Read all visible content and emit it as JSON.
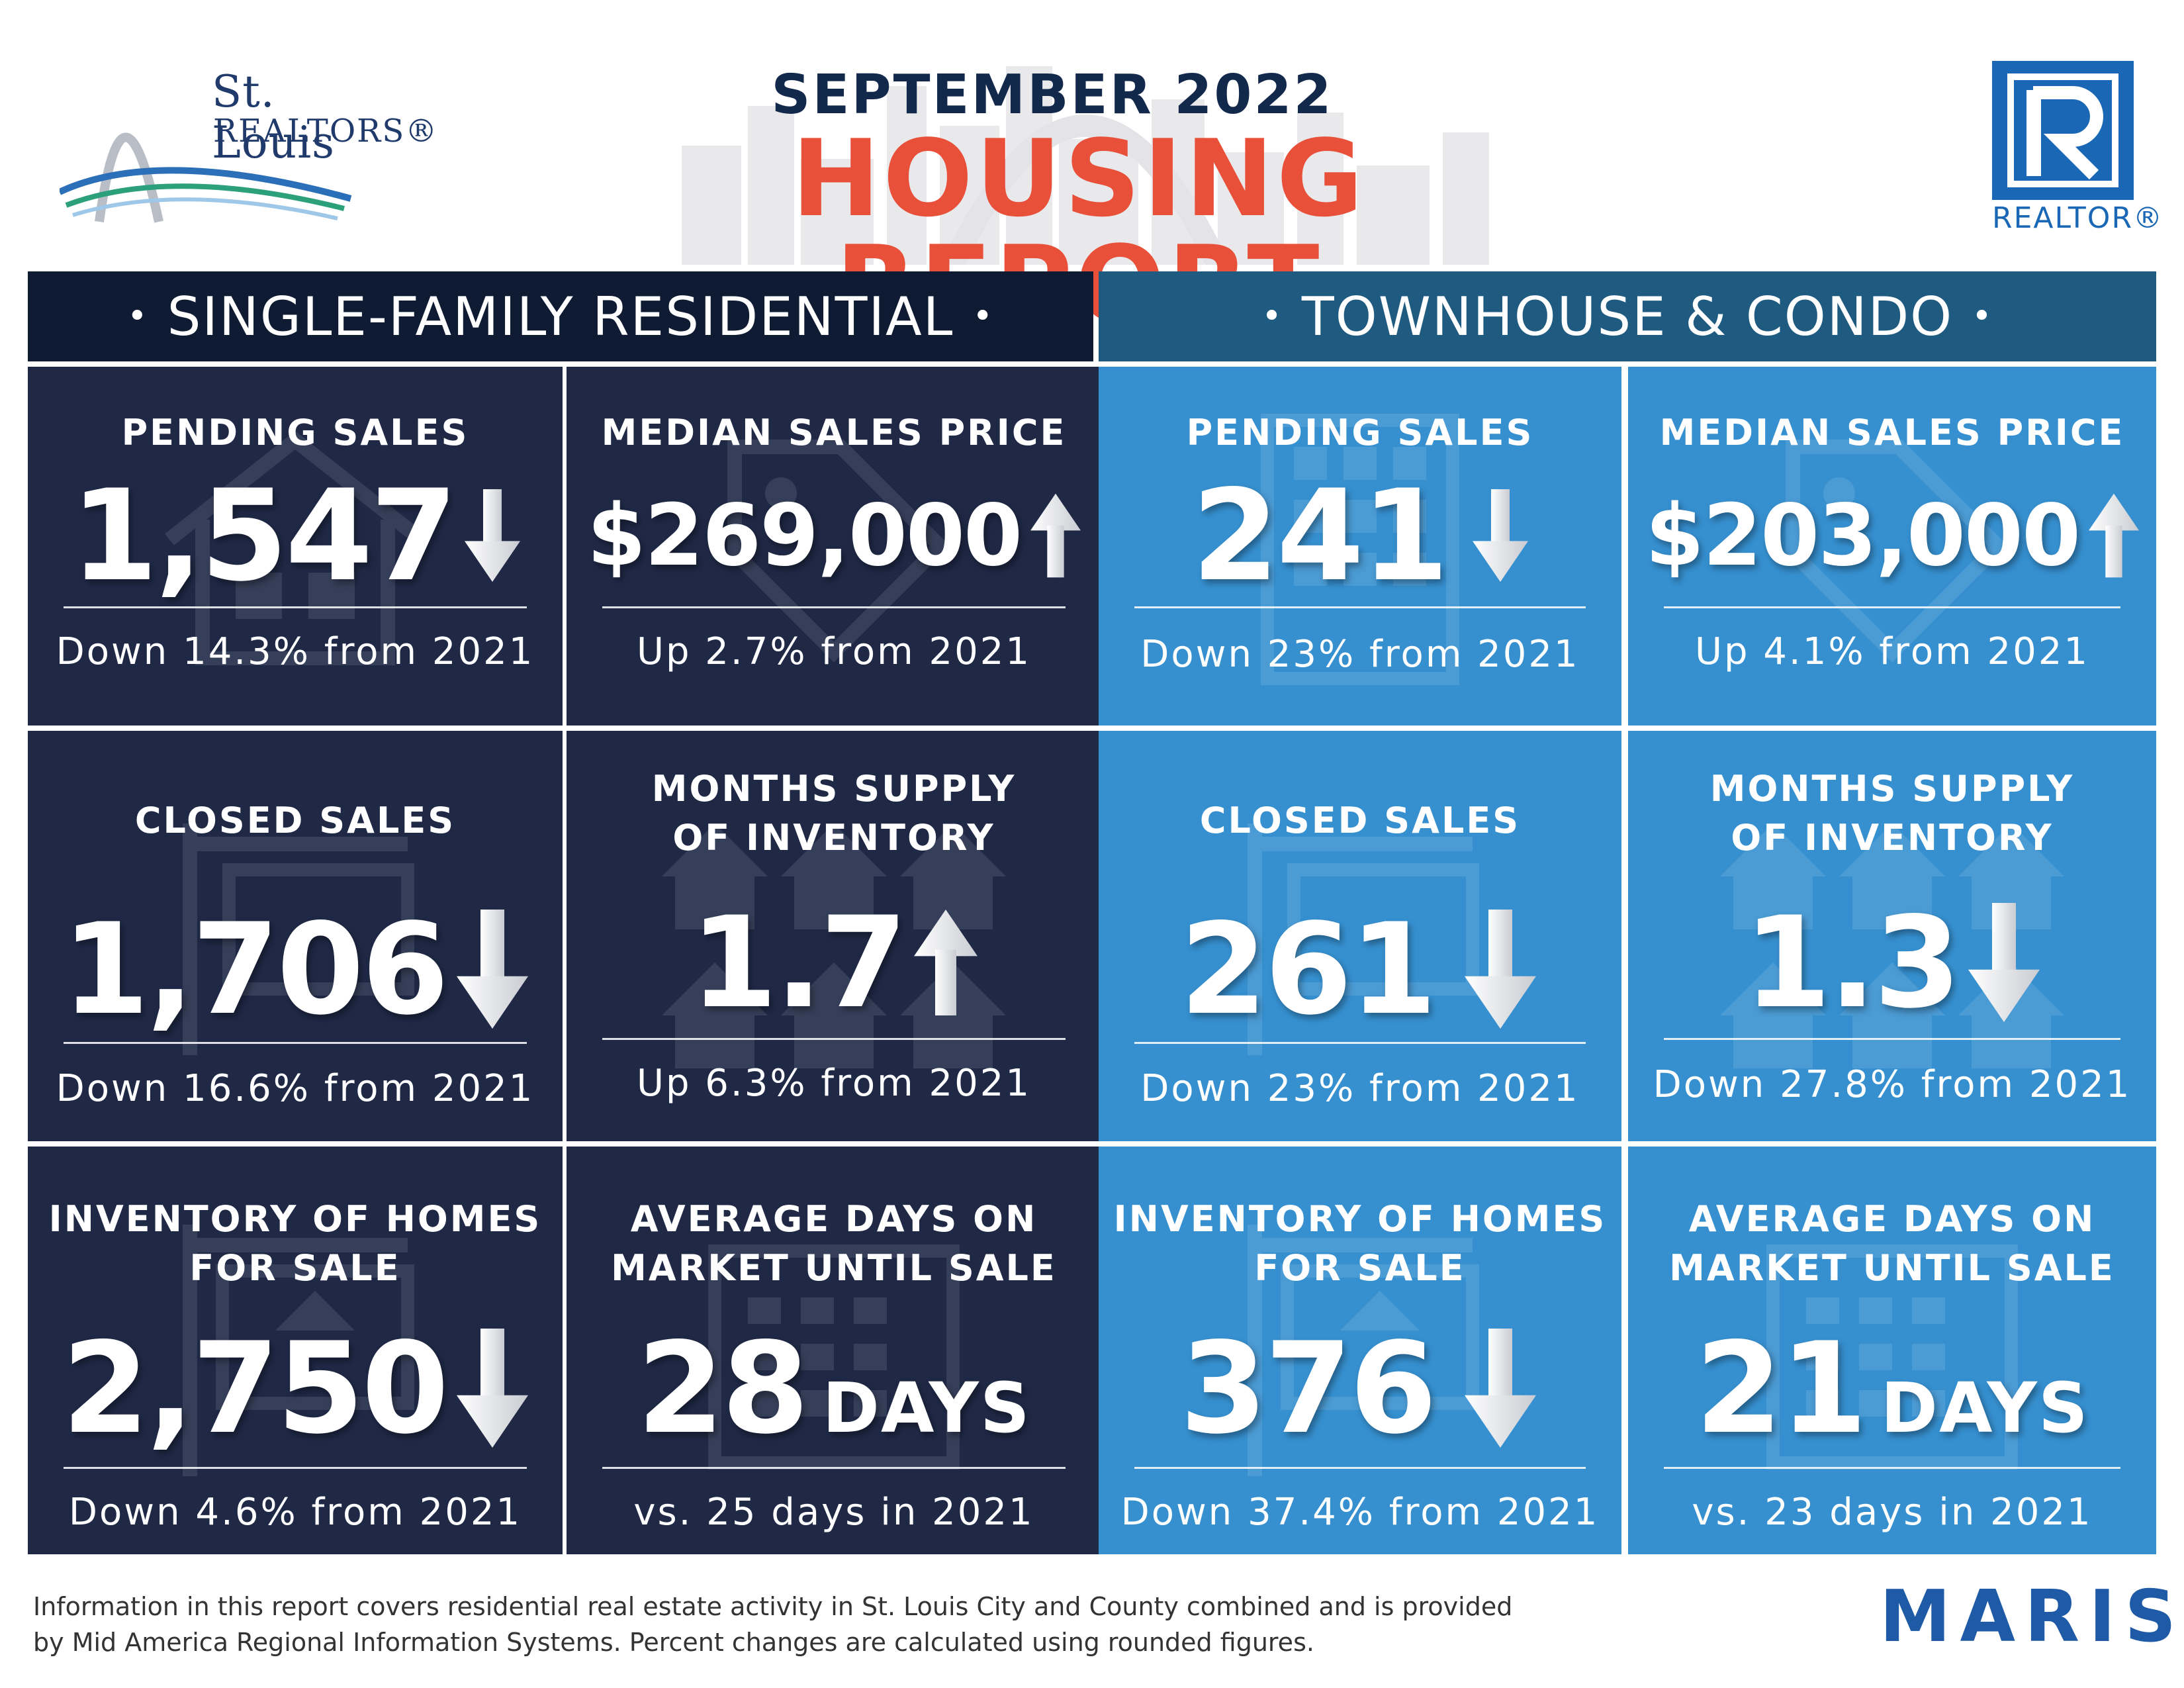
{
  "header": {
    "brand_line1": "St. Louis",
    "brand_line2": "REALTORS®",
    "month": "SEPTEMBER 2022",
    "title": "HOUSING REPORT",
    "realtor_mark": "REALTOR®"
  },
  "sections": {
    "left": "SINGLE-FAMILY RESIDENTIAL",
    "right": "TOWNHOUSE & CONDO",
    "dot": "•"
  },
  "single_family": {
    "pending": {
      "label": "PENDING SALES",
      "value": "1,547",
      "trend": "down",
      "change": "Down 14.3% from 2021",
      "icon": "house-icon"
    },
    "median": {
      "label": "MEDIAN SALES PRICE",
      "value": "$269,000",
      "trend": "up",
      "change": "Up 2.7% from 2021",
      "icon": "price-tag-icon"
    },
    "closed": {
      "label": "CLOSED SALES",
      "value": "1,706",
      "trend": "down",
      "change": "Down 16.6% from 2021",
      "icon": "sold-sign-icon"
    },
    "supply": {
      "label1": "MONTHS SUPPLY",
      "label2": "OF INVENTORY",
      "value": "1.7",
      "trend": "up",
      "change": "Up 6.3% from 2021",
      "icon": "houses-icon"
    },
    "inventory": {
      "label1": "INVENTORY OF HOMES",
      "label2": "FOR SALE",
      "value": "2,750",
      "trend": "down",
      "change": "Down 4.6% from 2021",
      "icon": "for-sale-sign-icon"
    },
    "dom": {
      "label1": "AVERAGE DAYS ON",
      "label2": "MARKET UNTIL SALE",
      "value": "28",
      "unit": "DAYS",
      "change": "vs. 25 days in 2021",
      "icon": "calendar-icon"
    }
  },
  "townhouse": {
    "pending": {
      "label": "PENDING SALES",
      "value": "241",
      "trend": "down",
      "change": "Down 23% from 2021",
      "icon": "building-icon"
    },
    "median": {
      "label": "MEDIAN SALES PRICE",
      "value": "$203,000",
      "trend": "up",
      "change": "Up 4.1% from 2021",
      "icon": "price-tag-icon"
    },
    "closed": {
      "label": "CLOSED SALES",
      "value": "261",
      "trend": "down",
      "change": "Down 23% from 2021",
      "icon": "sold-sign-icon"
    },
    "supply": {
      "label1": "MONTHS SUPPLY",
      "label2": "OF INVENTORY",
      "value": "1.3",
      "trend": "down",
      "change": "Down 27.8% from 2021",
      "icon": "houses-icon"
    },
    "inventory": {
      "label1": "INVENTORY OF HOMES",
      "label2": "FOR SALE",
      "value": "376",
      "trend": "down",
      "change": "Down 37.4% from 2021",
      "icon": "for-sale-sign-icon"
    },
    "dom": {
      "label1": "AVERAGE DAYS ON",
      "label2": "MARKET UNTIL SALE",
      "value": "21",
      "unit": "DAYS",
      "change": "vs. 23 days in 2021",
      "icon": "calendar-icon"
    }
  },
  "footer": {
    "note_line1": "Information in this report covers residential real estate activity in St. Louis City and County combined and is provided",
    "note_line2": "by Mid America Regional Information Systems. Percent changes are calculated using rounded figures.",
    "maris": "MARIS"
  },
  "colors": {
    "dark_card": "#1f2946",
    "blue_card": "#3690d0",
    "left_header": "#0f1a33",
    "right_header": "#1f5a80",
    "title_red": "#e8503a",
    "navy_text": "#13294b",
    "realtor_blue": "#1a68b5",
    "maris_blue": "#1f5aa6"
  }
}
